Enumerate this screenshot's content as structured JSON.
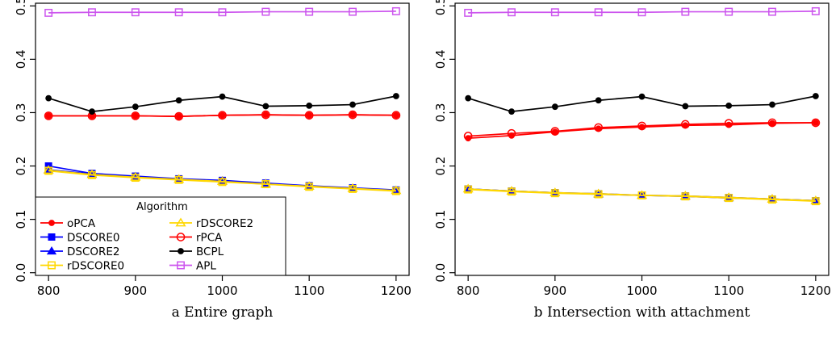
{
  "chart_data": [
    {
      "type": "line",
      "caption": "a Entire graph",
      "x": [
        800,
        850,
        900,
        950,
        1000,
        1050,
        1100,
        1150,
        1200
      ],
      "xticks": [
        800,
        900,
        1000,
        1100,
        1200
      ],
      "yticks": [
        0.0,
        0.1,
        0.2,
        0.3,
        0.4,
        0.5
      ],
      "xlim": [
        785,
        1215
      ],
      "ylim": [
        -0.005,
        0.505
      ],
      "legend": {
        "title": "Algorithm",
        "placement": "bottom-left",
        "columns": 2
      },
      "series": [
        {
          "name": "oPCA",
          "color": "#ff0000",
          "marker": "dot",
          "values": [
            0.294,
            0.294,
            0.294,
            0.293,
            0.295,
            0.296,
            0.295,
            0.296,
            0.295
          ]
        },
        {
          "name": "DSCORE0",
          "color": "#0000ff",
          "marker": "square-filled",
          "values": [
            0.2,
            0.186,
            0.181,
            0.176,
            0.173,
            0.168,
            0.163,
            0.159,
            0.155
          ]
        },
        {
          "name": "DSCORE2",
          "color": "#0000ff",
          "marker": "triangle-filled",
          "values": [
            0.193,
            0.185,
            0.18,
            0.175,
            0.172,
            0.167,
            0.162,
            0.158,
            0.154
          ]
        },
        {
          "name": "rDSCORE0",
          "color": "#ffd700",
          "marker": "square-open",
          "values": [
            0.191,
            0.183,
            0.178,
            0.174,
            0.17,
            0.166,
            0.161,
            0.157,
            0.153
          ]
        },
        {
          "name": "rDSCORE2",
          "color": "#ffd700",
          "marker": "triangle-open",
          "values": [
            0.192,
            0.184,
            0.179,
            0.175,
            0.171,
            0.166,
            0.162,
            0.158,
            0.154
          ]
        },
        {
          "name": "rPCA",
          "color": "#ff0000",
          "marker": "circle-open",
          "values": [
            0.294,
            0.294,
            0.294,
            0.293,
            0.295,
            0.296,
            0.295,
            0.296,
            0.295
          ]
        },
        {
          "name": "BCPL",
          "color": "#000000",
          "marker": "dot",
          "values": [
            0.327,
            0.302,
            0.311,
            0.323,
            0.33,
            0.312,
            0.313,
            0.315,
            0.331
          ]
        },
        {
          "name": "APL",
          "color": "#cc55ee",
          "marker": "square-open",
          "values": [
            0.487,
            0.488,
            0.488,
            0.488,
            0.488,
            0.489,
            0.489,
            0.489,
            0.49
          ]
        }
      ]
    },
    {
      "type": "line",
      "caption": "b Intersection with attachment",
      "x": [
        800,
        850,
        900,
        950,
        1000,
        1050,
        1100,
        1150,
        1200
      ],
      "xticks": [
        800,
        900,
        1000,
        1100,
        1200
      ],
      "yticks": [
        0.0,
        0.1,
        0.2,
        0.3,
        0.4,
        0.5
      ],
      "xlim": [
        785,
        1215
      ],
      "ylim": [
        -0.005,
        0.505
      ],
      "series": [
        {
          "name": "oPCA",
          "color": "#ff0000",
          "marker": "dot",
          "values": [
            0.252,
            0.257,
            0.264,
            0.27,
            0.273,
            0.276,
            0.277,
            0.28,
            0.281
          ]
        },
        {
          "name": "DSCORE0",
          "color": "#0000ff",
          "marker": "square-filled",
          "values": [
            0.157,
            0.153,
            0.15,
            0.148,
            0.145,
            0.144,
            0.141,
            0.138,
            0.135
          ]
        },
        {
          "name": "DSCORE2",
          "color": "#0000ff",
          "marker": "triangle-filled",
          "values": [
            0.157,
            0.153,
            0.15,
            0.147,
            0.145,
            0.143,
            0.14,
            0.138,
            0.135
          ]
        },
        {
          "name": "rDSCORE0",
          "color": "#ffd700",
          "marker": "square-open",
          "values": [
            0.156,
            0.152,
            0.149,
            0.147,
            0.145,
            0.143,
            0.14,
            0.137,
            0.134
          ]
        },
        {
          "name": "rDSCORE2",
          "color": "#ffd700",
          "marker": "triangle-open",
          "values": [
            0.157,
            0.153,
            0.15,
            0.148,
            0.145,
            0.144,
            0.141,
            0.138,
            0.135
          ]
        },
        {
          "name": "rPCA",
          "color": "#ff0000",
          "marker": "circle-open",
          "values": [
            0.256,
            0.261,
            0.265,
            0.272,
            0.275,
            0.278,
            0.28,
            0.281,
            0.281
          ]
        },
        {
          "name": "BCPL",
          "color": "#000000",
          "marker": "dot",
          "values": [
            0.327,
            0.302,
            0.311,
            0.323,
            0.33,
            0.312,
            0.313,
            0.315,
            0.331
          ]
        },
        {
          "name": "APL",
          "color": "#cc55ee",
          "marker": "square-open",
          "values": [
            0.487,
            0.488,
            0.488,
            0.488,
            0.488,
            0.489,
            0.489,
            0.489,
            0.49
          ]
        }
      ]
    }
  ]
}
